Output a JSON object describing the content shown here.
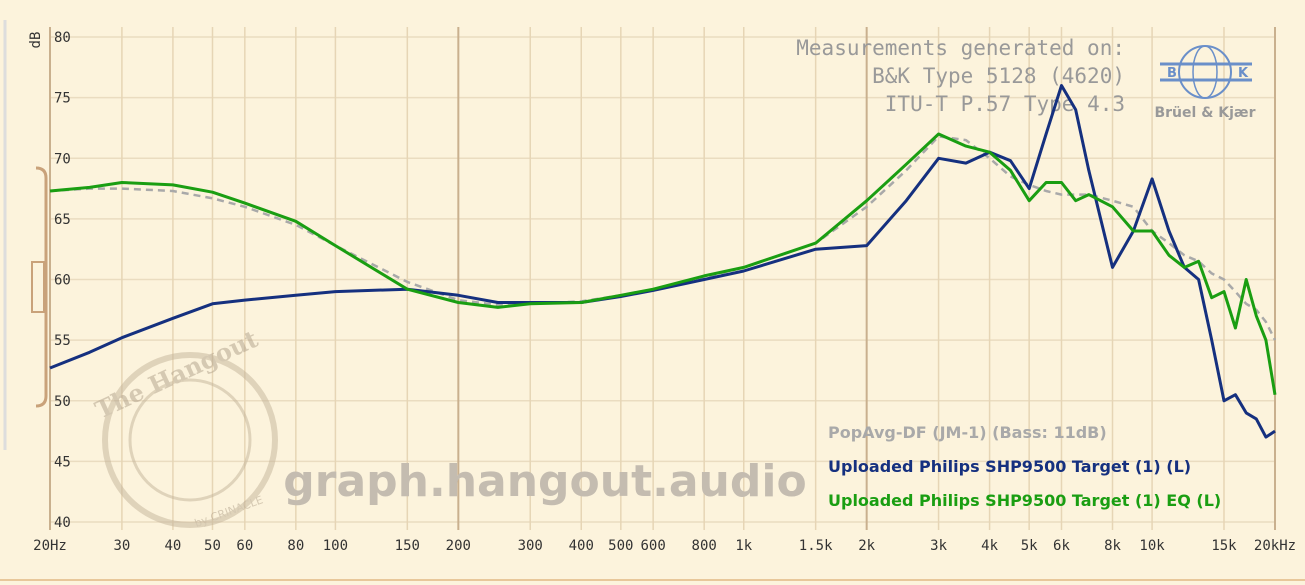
{
  "chart_data": {
    "type": "line",
    "x_scale": "log",
    "y_label": "dB",
    "x": [
      20,
      25,
      30,
      40,
      50,
      60,
      80,
      100,
      150,
      200,
      250,
      300,
      400,
      500,
      600,
      800,
      1000,
      1500,
      2000,
      2500,
      3000,
      3500,
      4000,
      4500,
      5000,
      5500,
      6000,
      6500,
      7000,
      8000,
      9000,
      10000,
      11000,
      12000,
      13000,
      14000,
      15000,
      16000,
      17000,
      18000,
      19000,
      20000
    ],
    "series": [
      {
        "name": "PopAvg-DF (JM-1) (Bass: 11dB)",
        "color": "#a9a9a9",
        "dashed": true,
        "values": [
          67.3,
          67.5,
          67.5,
          67.3,
          66.7,
          66,
          64.5,
          62.8,
          59.8,
          58.3,
          57.9,
          58,
          58.2,
          58.7,
          59.2,
          60.2,
          61,
          63,
          66,
          69,
          71.8,
          71.5,
          70,
          68.5,
          67.8,
          67.3,
          67,
          67,
          67,
          66.5,
          66,
          64,
          63,
          62,
          61.5,
          60.5,
          60,
          59,
          58,
          57.5,
          56.5,
          55
        ]
      },
      {
        "name": "Uploaded Philips SHP9500 Target (1) (L)",
        "color": "#15307f",
        "dashed": false,
        "values": [
          52.7,
          54,
          55.2,
          56.8,
          58,
          58.3,
          58.7,
          59,
          59.2,
          58.7,
          58.1,
          58.1,
          58.1,
          58.6,
          59.1,
          60,
          60.7,
          62.5,
          62.8,
          66.5,
          70,
          69.6,
          70.5,
          69.8,
          67.5,
          72,
          76,
          74,
          69,
          61,
          64,
          68.3,
          64,
          61,
          60,
          55,
          50,
          50.5,
          49,
          48.5,
          47,
          47.5
        ]
      },
      {
        "name": "Uploaded Philips SHP9500 Target (1) EQ (L)",
        "color": "#1a9e12",
        "dashed": false,
        "values": [
          67.3,
          67.6,
          68,
          67.8,
          67.2,
          66.3,
          64.8,
          62.8,
          59.2,
          58.1,
          57.7,
          58,
          58.1,
          58.7,
          59.2,
          60.3,
          61,
          63,
          66.5,
          69.5,
          72,
          71,
          70.5,
          69,
          66.5,
          68,
          68,
          66.5,
          67,
          66,
          64,
          64,
          62,
          61,
          61.5,
          58.5,
          59,
          56,
          60,
          57,
          55,
          50.5
        ]
      }
    ],
    "xlim": [
      20,
      20000
    ],
    "ylim": [
      40,
      80
    ],
    "xticks": [
      {
        "value": 20,
        "label": "20Hz"
      },
      30,
      40,
      50,
      60,
      80,
      100,
      150,
      200,
      300,
      400,
      500,
      600,
      800,
      {
        "value": 1000,
        "label": "1k"
      },
      {
        "value": 1500,
        "label": "1.5k"
      },
      {
        "value": 2000,
        "label": "2k"
      },
      {
        "value": 3000,
        "label": "3k"
      },
      {
        "value": 4000,
        "label": "4k"
      },
      {
        "value": 5000,
        "label": "5k"
      },
      {
        "value": 6000,
        "label": "6k"
      },
      {
        "value": 8000,
        "label": "8k"
      },
      {
        "value": 10000,
        "label": "10k"
      },
      {
        "value": 15000,
        "label": "15k"
      },
      {
        "value": 20000,
        "label": "20kHz"
      }
    ],
    "yticks": [
      40,
      45,
      50,
      55,
      60,
      65,
      70,
      75,
      80
    ],
    "grid": true,
    "annotations": [
      "Measurements generated on:",
      "B&K Type 5128 (4620)",
      "ITU-T P.57 Type 4.3",
      "Brüel & Kjær",
      "B",
      "K",
      "graph.hangout.audio",
      "The Hangout",
      "by CRINACLE"
    ]
  }
}
